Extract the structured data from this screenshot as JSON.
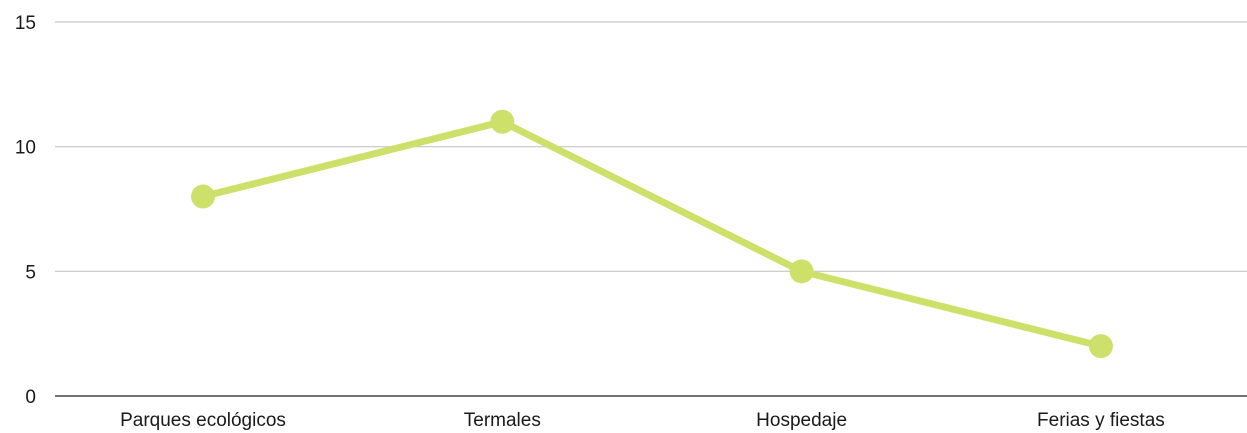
{
  "chart_data": {
    "type": "line",
    "title": "",
    "xlabel": "",
    "ylabel": "",
    "categories": [
      "Parques ecológicos",
      "Termales",
      "Hospedaje",
      "Ferias y fiestas"
    ],
    "series": [
      {
        "values": [
          8,
          11,
          5,
          2
        ],
        "color": "#cde06a"
      }
    ],
    "ylim": [
      0,
      15
    ],
    "yticks": [
      0,
      5,
      10,
      15
    ],
    "grid": true,
    "legend": "none",
    "colors": {
      "grid": "#c6c6c6",
      "axis": "#444444",
      "text": "#1a1a1a"
    }
  }
}
